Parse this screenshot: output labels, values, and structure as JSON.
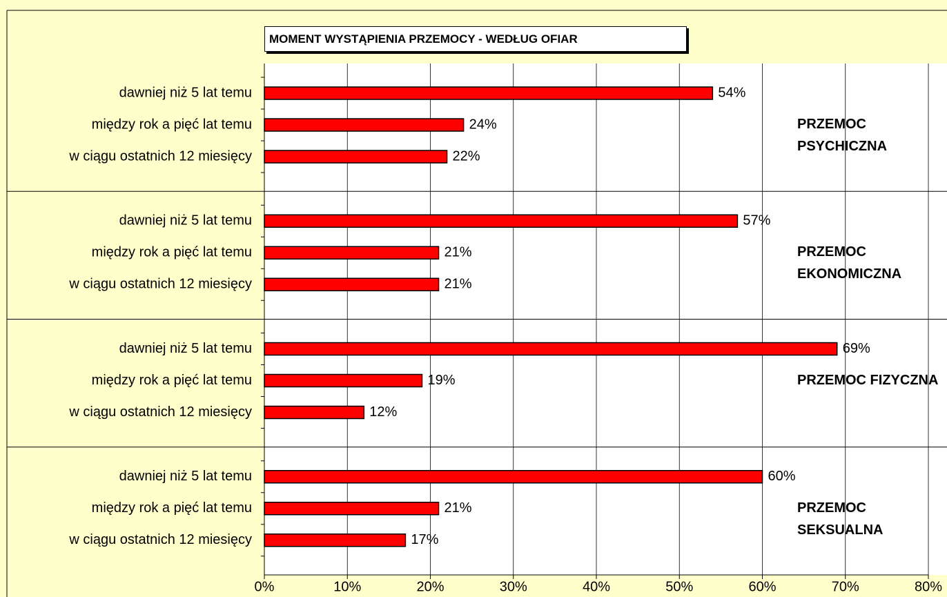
{
  "chart_data": {
    "type": "bar",
    "orientation": "horizontal",
    "title": "MOMENT WYSTĄPIENIA PRZEMOCY - WEDŁUG OFIAR",
    "color": "#ff0000",
    "groups": [
      {
        "name": "PRZEMOC PSYCHICZNA",
        "categories": [
          "dawniej niż 5 lat temu",
          "między rok a pięć lat temu",
          "w ciągu ostatnich 12 miesięcy"
        ],
        "values": [
          54,
          24,
          22
        ],
        "value_labels": [
          "54%",
          "24%",
          "22%"
        ]
      },
      {
        "name": "PRZEMOC EKONOMICZNA",
        "categories": [
          "dawniej niż 5 lat temu",
          "między rok a pięć lat temu",
          "w ciągu ostatnich 12 miesięcy"
        ],
        "values": [
          57,
          21,
          21
        ],
        "value_labels": [
          "57%",
          "21%",
          "21%"
        ]
      },
      {
        "name": "PRZEMOC FIZYCZNA",
        "categories": [
          "dawniej niż 5 lat temu",
          "między rok a pięć lat temu",
          "w ciągu ostatnich 12 miesięcy"
        ],
        "values": [
          69,
          19,
          12
        ],
        "value_labels": [
          "69%",
          "19%",
          "12%"
        ]
      },
      {
        "name": "PRZEMOC SEKSUALNA",
        "categories": [
          "dawniej niż 5 lat temu",
          "między rok a pięć lat temu",
          "w ciągu ostatnich 12 miesięcy"
        ],
        "values": [
          60,
          21,
          17
        ],
        "value_labels": [
          "60%",
          "21%",
          "17%"
        ]
      }
    ],
    "xlim": [
      0,
      80
    ],
    "xticks": [
      {
        "value": 0,
        "label": "0%"
      },
      {
        "value": 10,
        "label": "10%"
      },
      {
        "value": 20,
        "label": "20%"
      },
      {
        "value": 30,
        "label": "30%"
      },
      {
        "value": 40,
        "label": "40%"
      },
      {
        "value": 50,
        "label": "50%"
      },
      {
        "value": 60,
        "label": "60%"
      },
      {
        "value": 70,
        "label": "70%"
      },
      {
        "value": 80,
        "label": "80%"
      }
    ],
    "grid": true
  }
}
